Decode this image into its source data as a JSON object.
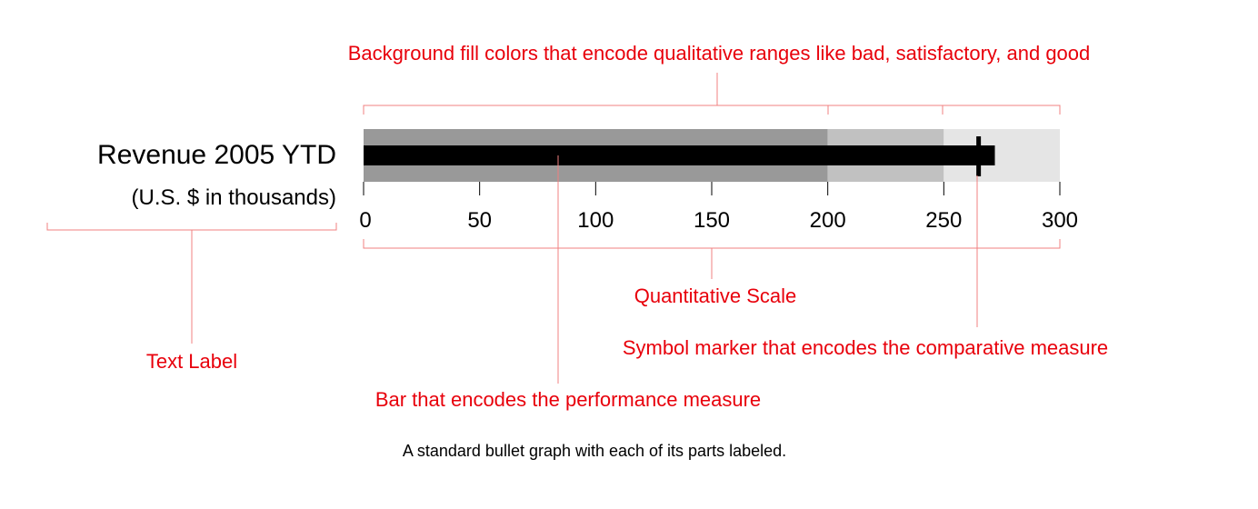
{
  "label": {
    "title": "Revenue 2005 YTD",
    "subtitle": "(U.S. $ in thousands)"
  },
  "chart_data": {
    "type": "bullet",
    "scale_min": 0,
    "scale_max": 300,
    "ticks": [
      0,
      50,
      100,
      150,
      200,
      250,
      300
    ],
    "tick_labels": [
      "0",
      "50",
      "100",
      "150",
      "200",
      "250",
      "300"
    ],
    "ranges": [
      {
        "from": 0,
        "to": 200,
        "color": "#999999"
      },
      {
        "from": 200,
        "to": 250,
        "color": "#c1c1c1"
      },
      {
        "from": 250,
        "to": 300,
        "color": "#e5e5e5"
      }
    ],
    "performance_value": 272,
    "comparative_value": 265,
    "bar_color": "#000000",
    "marker_color": "#000000"
  },
  "annotations": {
    "ranges": "Background fill colors that encode qualitative ranges like bad, satisfactory, and good",
    "scale": "Quantitative Scale",
    "marker": "Symbol marker that encodes the comparative measure",
    "label": "Text Label",
    "bar": "Bar that encodes the performance measure",
    "color": "#e8000b"
  },
  "caption": "A standard bullet graph with each of its parts labeled."
}
